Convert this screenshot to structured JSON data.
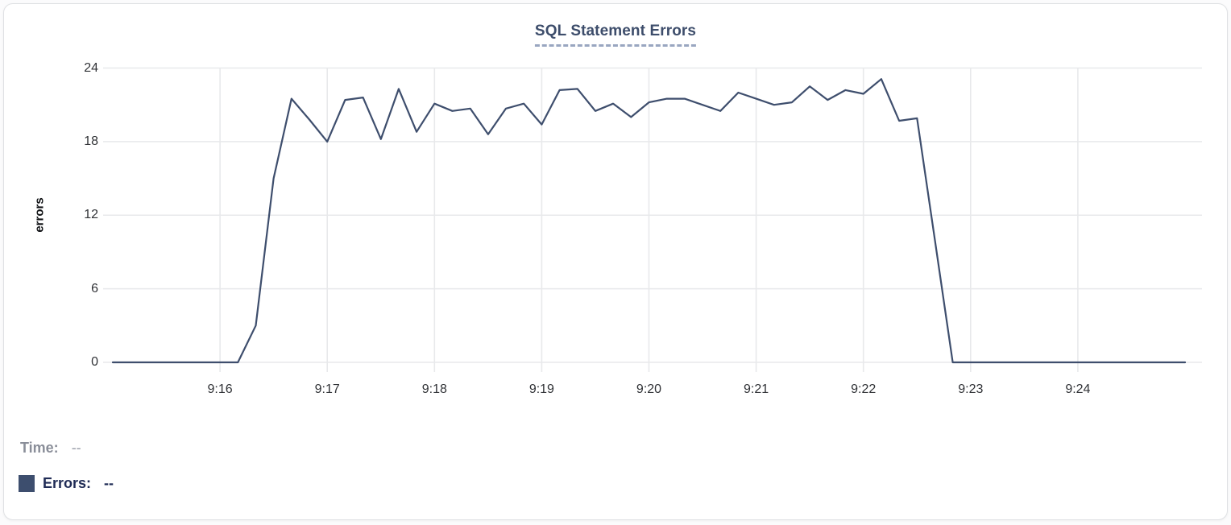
{
  "title": "SQL Statement Errors",
  "colors": {
    "line": "#3E4E6D",
    "title_text": "#3D4D6B",
    "title_underline": "#99A6C0",
    "grid": "#E8E9EB",
    "tick_label": "#303236",
    "axis_title": "#101215",
    "legend_time_text": "#8A8E99",
    "legend_errors_text": "#202C56",
    "legend_swatch": "#3D4E6E",
    "card_border": "#DFE1E4"
  },
  "y_axis": {
    "title": "errors",
    "ticks": [
      0,
      6,
      12,
      18,
      24
    ]
  },
  "x_axis": {
    "tick_labels": [
      "9:16",
      "9:17",
      "9:18",
      "9:19",
      "9:20",
      "9:21",
      "9:22",
      "9:23",
      "9:24"
    ]
  },
  "legend": {
    "time_label": "Time:",
    "time_value": "--",
    "errors_label": "Errors:",
    "errors_value": "--"
  },
  "chart_data": {
    "type": "line",
    "title": "SQL Statement Errors",
    "xlabel": "",
    "ylabel": "errors",
    "ylim": [
      0,
      24
    ],
    "y_ticks": [
      0,
      6,
      12,
      18,
      24
    ],
    "x_tick_labels": [
      "9:16",
      "9:17",
      "9:18",
      "9:19",
      "9:20",
      "9:21",
      "9:22",
      "9:23",
      "9:24"
    ],
    "x_range": [
      "9:15:00",
      "9:25:00"
    ],
    "interval_seconds": 10,
    "grid": true,
    "legend_position": "bottom-left",
    "series": [
      {
        "name": "Errors",
        "color": "#3E4E6D",
        "x": [
          "9:15:00",
          "9:15:10",
          "9:15:20",
          "9:15:30",
          "9:15:40",
          "9:15:50",
          "9:16:00",
          "9:16:10",
          "9:16:20",
          "9:16:30",
          "9:16:40",
          "9:16:50",
          "9:17:00",
          "9:17:10",
          "9:17:20",
          "9:17:30",
          "9:17:40",
          "9:17:50",
          "9:18:00",
          "9:18:10",
          "9:18:20",
          "9:18:30",
          "9:18:40",
          "9:18:50",
          "9:19:00",
          "9:19:10",
          "9:19:20",
          "9:19:30",
          "9:19:40",
          "9:19:50",
          "9:20:00",
          "9:20:10",
          "9:20:20",
          "9:20:30",
          "9:20:40",
          "9:20:50",
          "9:21:00",
          "9:21:10",
          "9:21:20",
          "9:21:30",
          "9:21:40",
          "9:21:50",
          "9:22:00",
          "9:22:10",
          "9:22:20",
          "9:22:30",
          "9:22:40",
          "9:22:50",
          "9:23:00",
          "9:23:10",
          "9:23:20",
          "9:23:30",
          "9:23:40",
          "9:23:50",
          "9:24:00",
          "9:24:10",
          "9:24:20",
          "9:24:30",
          "9:24:40",
          "9:24:50",
          "9:25:00"
        ],
        "values": [
          0,
          0,
          0,
          0,
          0,
          0,
          0,
          0,
          3,
          15,
          21.5,
          19.8,
          18,
          21.4,
          21.6,
          18.2,
          22.3,
          18.8,
          21.1,
          20.5,
          20.7,
          18.6,
          20.7,
          21.1,
          19.4,
          22.2,
          22.3,
          20.5,
          21.1,
          20,
          21.2,
          21.5,
          21.5,
          21,
          20.5,
          22,
          21.5,
          21,
          21.2,
          22.5,
          21.4,
          22.2,
          21.9,
          23.1,
          19.7,
          19.9,
          10,
          0,
          0,
          0,
          0,
          0,
          0,
          0,
          0,
          0,
          0,
          0,
          0,
          0,
          0
        ]
      }
    ]
  }
}
